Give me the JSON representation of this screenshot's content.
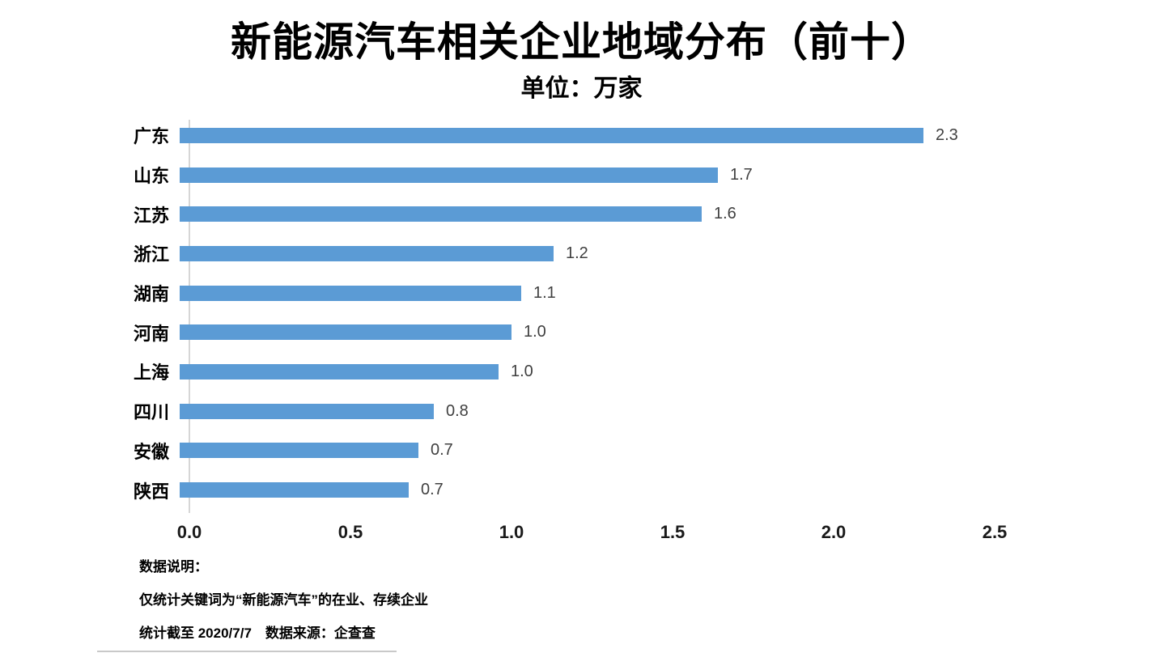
{
  "header": {
    "title": "新能源汽车相关企业地域分布（前十）",
    "subtitle": "单位：万家"
  },
  "chart_data": {
    "type": "bar",
    "orientation": "horizontal",
    "title": "新能源汽车相关企业地域分布（前十）",
    "subtitle": "单位：万家",
    "unit": "万家",
    "categories": [
      "广东",
      "山东",
      "江苏",
      "浙江",
      "湖南",
      "河南",
      "上海",
      "四川",
      "安徽",
      "陕西"
    ],
    "values": [
      2.3,
      1.7,
      1.6,
      1.2,
      1.1,
      1.0,
      1.0,
      0.8,
      0.7,
      0.7
    ],
    "value_labels": [
      "2.3",
      "1.7",
      "1.6",
      "1.2",
      "1.1",
      "1.0",
      "1.0",
      "0.8",
      "0.7",
      "0.7"
    ],
    "bar_lengths": [
      2.31,
      1.67,
      1.62,
      1.16,
      1.06,
      1.03,
      0.99,
      0.79,
      0.74,
      0.71
    ],
    "xlabel": "",
    "ylabel": "",
    "xlim": [
      0,
      2.5
    ],
    "x_ticks": [
      "0.0",
      "0.5",
      "1.0",
      "1.5",
      "2.0",
      "2.5"
    ],
    "x_tick_values": [
      0.0,
      0.5,
      1.0,
      1.5,
      2.0,
      2.5
    ],
    "grid": false,
    "legend": "none",
    "bar_color": "#5B9BD5",
    "value_label_color": "#404040",
    "axis_line_color": "#D6D6D6"
  },
  "footer": {
    "heading": "数据说明：",
    "note": "仅统计关键词为“新能源汽车”的在业、存续企业",
    "source": "统计截至 2020/7/7　数据来源：企查查"
  }
}
